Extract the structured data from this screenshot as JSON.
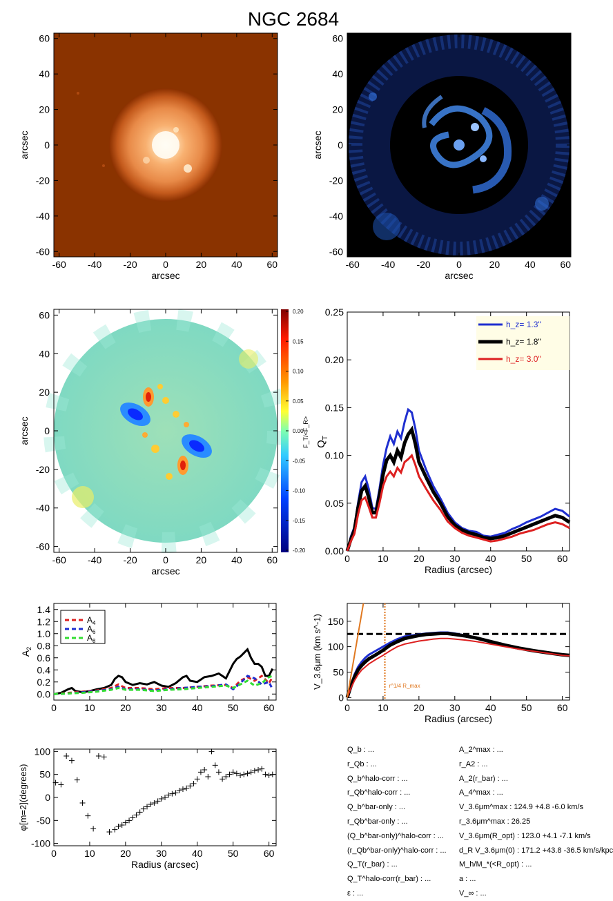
{
  "title": "NGC 2684",
  "colors": {
    "blue": "#1f2fd0",
    "black": "#000000",
    "red": "#dd2020",
    "green": "#33dd33",
    "orange": "#e07820",
    "legend_bg": "#fffde6"
  },
  "panels": {
    "image_3p6": {
      "type": "image",
      "xlabel": "arcsec",
      "ylabel": "arcsec",
      "ticks": [
        "-60",
        "-40",
        "-20",
        "0",
        "20",
        "40",
        "60"
      ]
    },
    "residual": {
      "type": "image",
      "xlabel": "arcsec",
      "ylabel": "arcsec",
      "ticks": [
        "-60",
        "-40",
        "-20",
        "0",
        "20",
        "40",
        "60"
      ]
    },
    "force_map": {
      "type": "heatmap",
      "xlabel": "arcsec",
      "ylabel": "arcsec",
      "ticks": [
        "-60",
        "-40",
        "-20",
        "0",
        "20",
        "40",
        "60"
      ],
      "colorbar_label": "F_T/<F_R>",
      "colorbar_ticks": [
        "0.20",
        "0.15",
        "0.10",
        "0.05",
        "0.00",
        "-0.05",
        "-0.10",
        "-0.15",
        "-0.20"
      ]
    }
  },
  "chart_data": [
    {
      "type": "line",
      "id": "qt",
      "xlabel": "Radius (arcsec)",
      "ylabel": "Q_T",
      "xlim": [
        0,
        62
      ],
      "ylim": [
        0,
        0.25
      ],
      "xticks": [
        "0",
        "10",
        "20",
        "30",
        "40",
        "50",
        "60"
      ],
      "yticks": [
        "0.00",
        "0.05",
        "0.10",
        "0.15",
        "0.20",
        "0.25"
      ],
      "legend_placement": "top-right",
      "series": [
        {
          "name": "h_z= 1.3''",
          "color": "#1f2fd0",
          "x": [
            0,
            1,
            2,
            3,
            4,
            5,
            6,
            7,
            8,
            9,
            10,
            11,
            12,
            13,
            14,
            15,
            16,
            17,
            18,
            19,
            20,
            22,
            24,
            26,
            28,
            30,
            32,
            34,
            36,
            38,
            40,
            42,
            44,
            46,
            48,
            50,
            52,
            54,
            56,
            58,
            60,
            62
          ],
          "y": [
            0,
            0.015,
            0.025,
            0.05,
            0.072,
            0.078,
            0.065,
            0.045,
            0.044,
            0.065,
            0.09,
            0.108,
            0.12,
            0.112,
            0.125,
            0.118,
            0.135,
            0.148,
            0.145,
            0.128,
            0.105,
            0.085,
            0.068,
            0.055,
            0.04,
            0.03,
            0.024,
            0.021,
            0.02,
            0.016,
            0.015,
            0.017,
            0.019,
            0.023,
            0.026,
            0.03,
            0.033,
            0.036,
            0.04,
            0.044,
            0.042,
            0.036
          ]
        },
        {
          "name": "h_z= 1.8''",
          "color": "#000000",
          "x": [
            0,
            1,
            2,
            3,
            4,
            5,
            6,
            7,
            8,
            9,
            10,
            11,
            12,
            13,
            14,
            15,
            16,
            17,
            18,
            19,
            20,
            22,
            24,
            26,
            28,
            30,
            32,
            34,
            36,
            38,
            40,
            42,
            44,
            46,
            48,
            50,
            52,
            54,
            56,
            58,
            60,
            62
          ],
          "y": [
            0,
            0.012,
            0.022,
            0.045,
            0.063,
            0.068,
            0.056,
            0.04,
            0.04,
            0.058,
            0.08,
            0.095,
            0.1,
            0.093,
            0.105,
            0.098,
            0.113,
            0.122,
            0.127,
            0.112,
            0.093,
            0.077,
            0.062,
            0.05,
            0.036,
            0.027,
            0.022,
            0.019,
            0.017,
            0.014,
            0.013,
            0.014,
            0.016,
            0.019,
            0.022,
            0.025,
            0.028,
            0.031,
            0.034,
            0.037,
            0.035,
            0.03
          ]
        },
        {
          "name": "h_z= 3.0''",
          "color": "#dd2020",
          "x": [
            0,
            1,
            2,
            3,
            4,
            5,
            6,
            7,
            8,
            9,
            10,
            11,
            12,
            13,
            14,
            15,
            16,
            17,
            18,
            19,
            20,
            22,
            24,
            26,
            28,
            30,
            32,
            34,
            36,
            38,
            40,
            42,
            44,
            46,
            48,
            50,
            52,
            54,
            56,
            58,
            60,
            62
          ],
          "y": [
            0,
            0.01,
            0.018,
            0.038,
            0.053,
            0.056,
            0.046,
            0.035,
            0.035,
            0.05,
            0.068,
            0.078,
            0.083,
            0.078,
            0.087,
            0.082,
            0.093,
            0.096,
            0.1,
            0.09,
            0.078,
            0.065,
            0.053,
            0.043,
            0.031,
            0.024,
            0.019,
            0.016,
            0.014,
            0.012,
            0.01,
            0.011,
            0.013,
            0.015,
            0.018,
            0.02,
            0.022,
            0.025,
            0.028,
            0.03,
            0.028,
            0.024
          ]
        }
      ]
    },
    {
      "type": "line",
      "id": "a2",
      "xlabel": "",
      "ylabel": "A_2",
      "xlim": [
        0,
        62
      ],
      "ylim": [
        -0.1,
        1.5
      ],
      "xticks": [
        "0",
        "10",
        "20",
        "30",
        "40",
        "50",
        "60"
      ],
      "yticks": [
        "0.0",
        "0.2",
        "0.4",
        "0.6",
        "0.8",
        "1.0",
        "1.2",
        "1.4"
      ],
      "legend_placement": "top-left",
      "series": [
        {
          "name": "A_2",
          "color": "#000000",
          "dash": false,
          "x": [
            0,
            2,
            4,
            5,
            6,
            8,
            10,
            12,
            14,
            16,
            17,
            18,
            19,
            20,
            22,
            24,
            26,
            28,
            30,
            32,
            34,
            36,
            37,
            38,
            40,
            42,
            44,
            46,
            48,
            50,
            51,
            52,
            53,
            54,
            55,
            56,
            57,
            58,
            59,
            60,
            61
          ],
          "y": [
            0,
            0.02,
            0.08,
            0.1,
            0.05,
            0.03,
            0.05,
            0.08,
            0.1,
            0.15,
            0.25,
            0.3,
            0.28,
            0.2,
            0.15,
            0.18,
            0.16,
            0.2,
            0.14,
            0.12,
            0.18,
            0.28,
            0.3,
            0.22,
            0.2,
            0.28,
            0.3,
            0.34,
            0.26,
            0.5,
            0.58,
            0.62,
            0.68,
            0.74,
            0.6,
            0.5,
            0.5,
            0.45,
            0.3,
            0.3,
            0.42
          ]
        },
        {
          "name": "A_4",
          "color": "#dd2020",
          "dash": true,
          "x": [
            0,
            4,
            8,
            12,
            16,
            18,
            20,
            24,
            28,
            32,
            36,
            40,
            44,
            48,
            50,
            52,
            54,
            56,
            58,
            60,
            61
          ],
          "y": [
            0,
            0.02,
            0.04,
            0.06,
            0.1,
            0.16,
            0.1,
            0.1,
            0.08,
            0.1,
            0.1,
            0.12,
            0.14,
            0.15,
            0.1,
            0.22,
            0.28,
            0.22,
            0.3,
            0.18,
            0.28
          ]
        },
        {
          "name": "A_6",
          "color": "#1f2fd0",
          "dash": true,
          "x": [
            0,
            4,
            8,
            12,
            16,
            18,
            20,
            24,
            28,
            32,
            36,
            40,
            44,
            48,
            50,
            52,
            54,
            56,
            58,
            60,
            61
          ],
          "y": [
            0,
            0.01,
            0.03,
            0.05,
            0.08,
            0.12,
            0.08,
            0.08,
            0.06,
            0.08,
            0.1,
            0.12,
            0.13,
            0.16,
            0.08,
            0.18,
            0.3,
            0.26,
            0.16,
            0.2,
            0.08
          ]
        },
        {
          "name": "A_8",
          "color": "#33dd33",
          "dash": true,
          "x": [
            0,
            4,
            8,
            12,
            16,
            18,
            20,
            24,
            28,
            32,
            36,
            40,
            44,
            48,
            50,
            52,
            54,
            56,
            58,
            60,
            61
          ],
          "y": [
            0,
            0.01,
            0.02,
            0.04,
            0.07,
            0.1,
            0.07,
            0.07,
            0.05,
            0.07,
            0.08,
            0.1,
            0.12,
            0.14,
            0.1,
            0.16,
            0.22,
            0.14,
            0.18,
            0.28,
            0.3
          ]
        }
      ]
    },
    {
      "type": "line",
      "id": "rotation",
      "xlabel": "Radius (arcsec)",
      "ylabel": "V_3.6μm (km s^-1)",
      "xlim": [
        0,
        62
      ],
      "ylim": [
        -5,
        185
      ],
      "xticks": [
        "0",
        "10",
        "20",
        "30",
        "40",
        "50",
        "60"
      ],
      "yticks": [
        "0",
        "50",
        "100",
        "150"
      ],
      "hline": 125,
      "vline": 10.5,
      "vline_label": "r^1/4 R_max",
      "series": [
        {
          "name": "",
          "color": "#1f2fd0",
          "x": [
            0,
            1,
            2,
            3,
            4,
            5,
            6,
            8,
            10,
            12,
            14,
            16,
            18,
            20,
            22,
            24,
            26,
            28,
            30,
            33,
            36,
            40,
            44,
            48,
            52,
            56,
            60,
            62
          ],
          "y": [
            0,
            25,
            45,
            60,
            70,
            78,
            84,
            92,
            100,
            108,
            115,
            120,
            122,
            124,
            126,
            127,
            128,
            128,
            126,
            122,
            118,
            111,
            104,
            98,
            92,
            88,
            84,
            83
          ]
        },
        {
          "name": "",
          "color": "#000000",
          "x": [
            0,
            1,
            2,
            3,
            4,
            5,
            6,
            8,
            10,
            12,
            14,
            16,
            18,
            20,
            22,
            24,
            26,
            28,
            30,
            33,
            36,
            40,
            44,
            48,
            52,
            56,
            60,
            62
          ],
          "y": [
            0,
            22,
            40,
            54,
            63,
            70,
            76,
            84,
            93,
            103,
            110,
            116,
            119,
            122,
            124,
            125,
            126,
            126,
            124,
            121,
            117,
            110,
            103,
            97,
            92,
            88,
            84,
            83
          ]
        },
        {
          "name": "",
          "color": "#dd2020",
          "x": [
            0,
            1,
            2,
            3,
            4,
            5,
            6,
            8,
            10,
            12,
            14,
            16,
            18,
            20,
            22,
            24,
            26,
            28,
            30,
            33,
            36,
            40,
            44,
            48,
            52,
            56,
            60,
            62
          ],
          "y": [
            0,
            18,
            33,
            45,
            54,
            60,
            66,
            75,
            83,
            92,
            100,
            105,
            108,
            111,
            113,
            115,
            116,
            116,
            115,
            113,
            110,
            105,
            100,
            95,
            91,
            87,
            83,
            82
          ]
        },
        {
          "name": "",
          "color": "#e07820",
          "x": [
            0,
            4.5
          ],
          "y": [
            0,
            185
          ]
        }
      ]
    },
    {
      "type": "scatter",
      "id": "phase",
      "xlabel": "Radius (arcsec)",
      "ylabel": "φ[m=2](degrees)",
      "xlim": [
        0,
        62
      ],
      "ylim": [
        -105,
        105
      ],
      "xticks": [
        "0",
        "10",
        "20",
        "30",
        "40",
        "50",
        "60"
      ],
      "yticks": [
        "-100",
        "-50",
        "0",
        "50",
        "100"
      ],
      "x": [
        0.5,
        2,
        3.5,
        5,
        6.5,
        8,
        9.5,
        11,
        12.5,
        14,
        15.5,
        17,
        18,
        19,
        20,
        21,
        22,
        23,
        24,
        25,
        26,
        27,
        28,
        29,
        30,
        31,
        32,
        33,
        34,
        35,
        36,
        37,
        38,
        39,
        40,
        41,
        42,
        43,
        44,
        45,
        46,
        47,
        48,
        49,
        50,
        51,
        52,
        53,
        54,
        55,
        56,
        57,
        58,
        59,
        60,
        61
      ],
      "y": [
        32,
        28,
        90,
        80,
        38,
        -12,
        -40,
        -68,
        90,
        88,
        -75,
        -70,
        -63,
        -60,
        -55,
        -50,
        -44,
        -38,
        -32,
        -25,
        -20,
        -15,
        -12,
        -8,
        -3,
        0,
        5,
        8,
        10,
        15,
        18,
        20,
        25,
        30,
        40,
        55,
        60,
        45,
        100,
        70,
        55,
        40,
        45,
        50,
        55,
        52,
        48,
        50,
        52,
        55,
        58,
        60,
        62,
        50,
        48,
        50
      ]
    }
  ],
  "params": {
    "left": [
      "Q_b : ...",
      "r_Qb : ...",
      "Q_b^halo-corr : ...",
      "r_Qb^halo-corr : ...",
      "Q_b^bar-only : ...",
      "r_Qb^bar-only : ...",
      "(Q_b^bar-only)^halo-corr : ...",
      "(r_Qb^bar-only)^halo-corr : ...",
      "Q_T(r_bar) : ...",
      "Q_T^halo-corr(r_bar) : ...",
      "ε : ..."
    ],
    "right": [
      "A_2^max : ...",
      "r_A2 : ...",
      "A_2(r_bar) : ...",
      "A_4^max : ...",
      "V_3.6μm^max : 124.9 +4.8 -6.0 km/s",
      "r_3.6μm^max : 26.25",
      "V_3.6μm(R_opt) : 123.0 +4.1 -7.1 km/s",
      "d_R V_3.6μm(0) : 171.2 +43.8 -36.5 km/s/kpc",
      "M_h/M_*(<R_opt) : ...",
      "a : ...",
      "V_∞ : ..."
    ]
  }
}
